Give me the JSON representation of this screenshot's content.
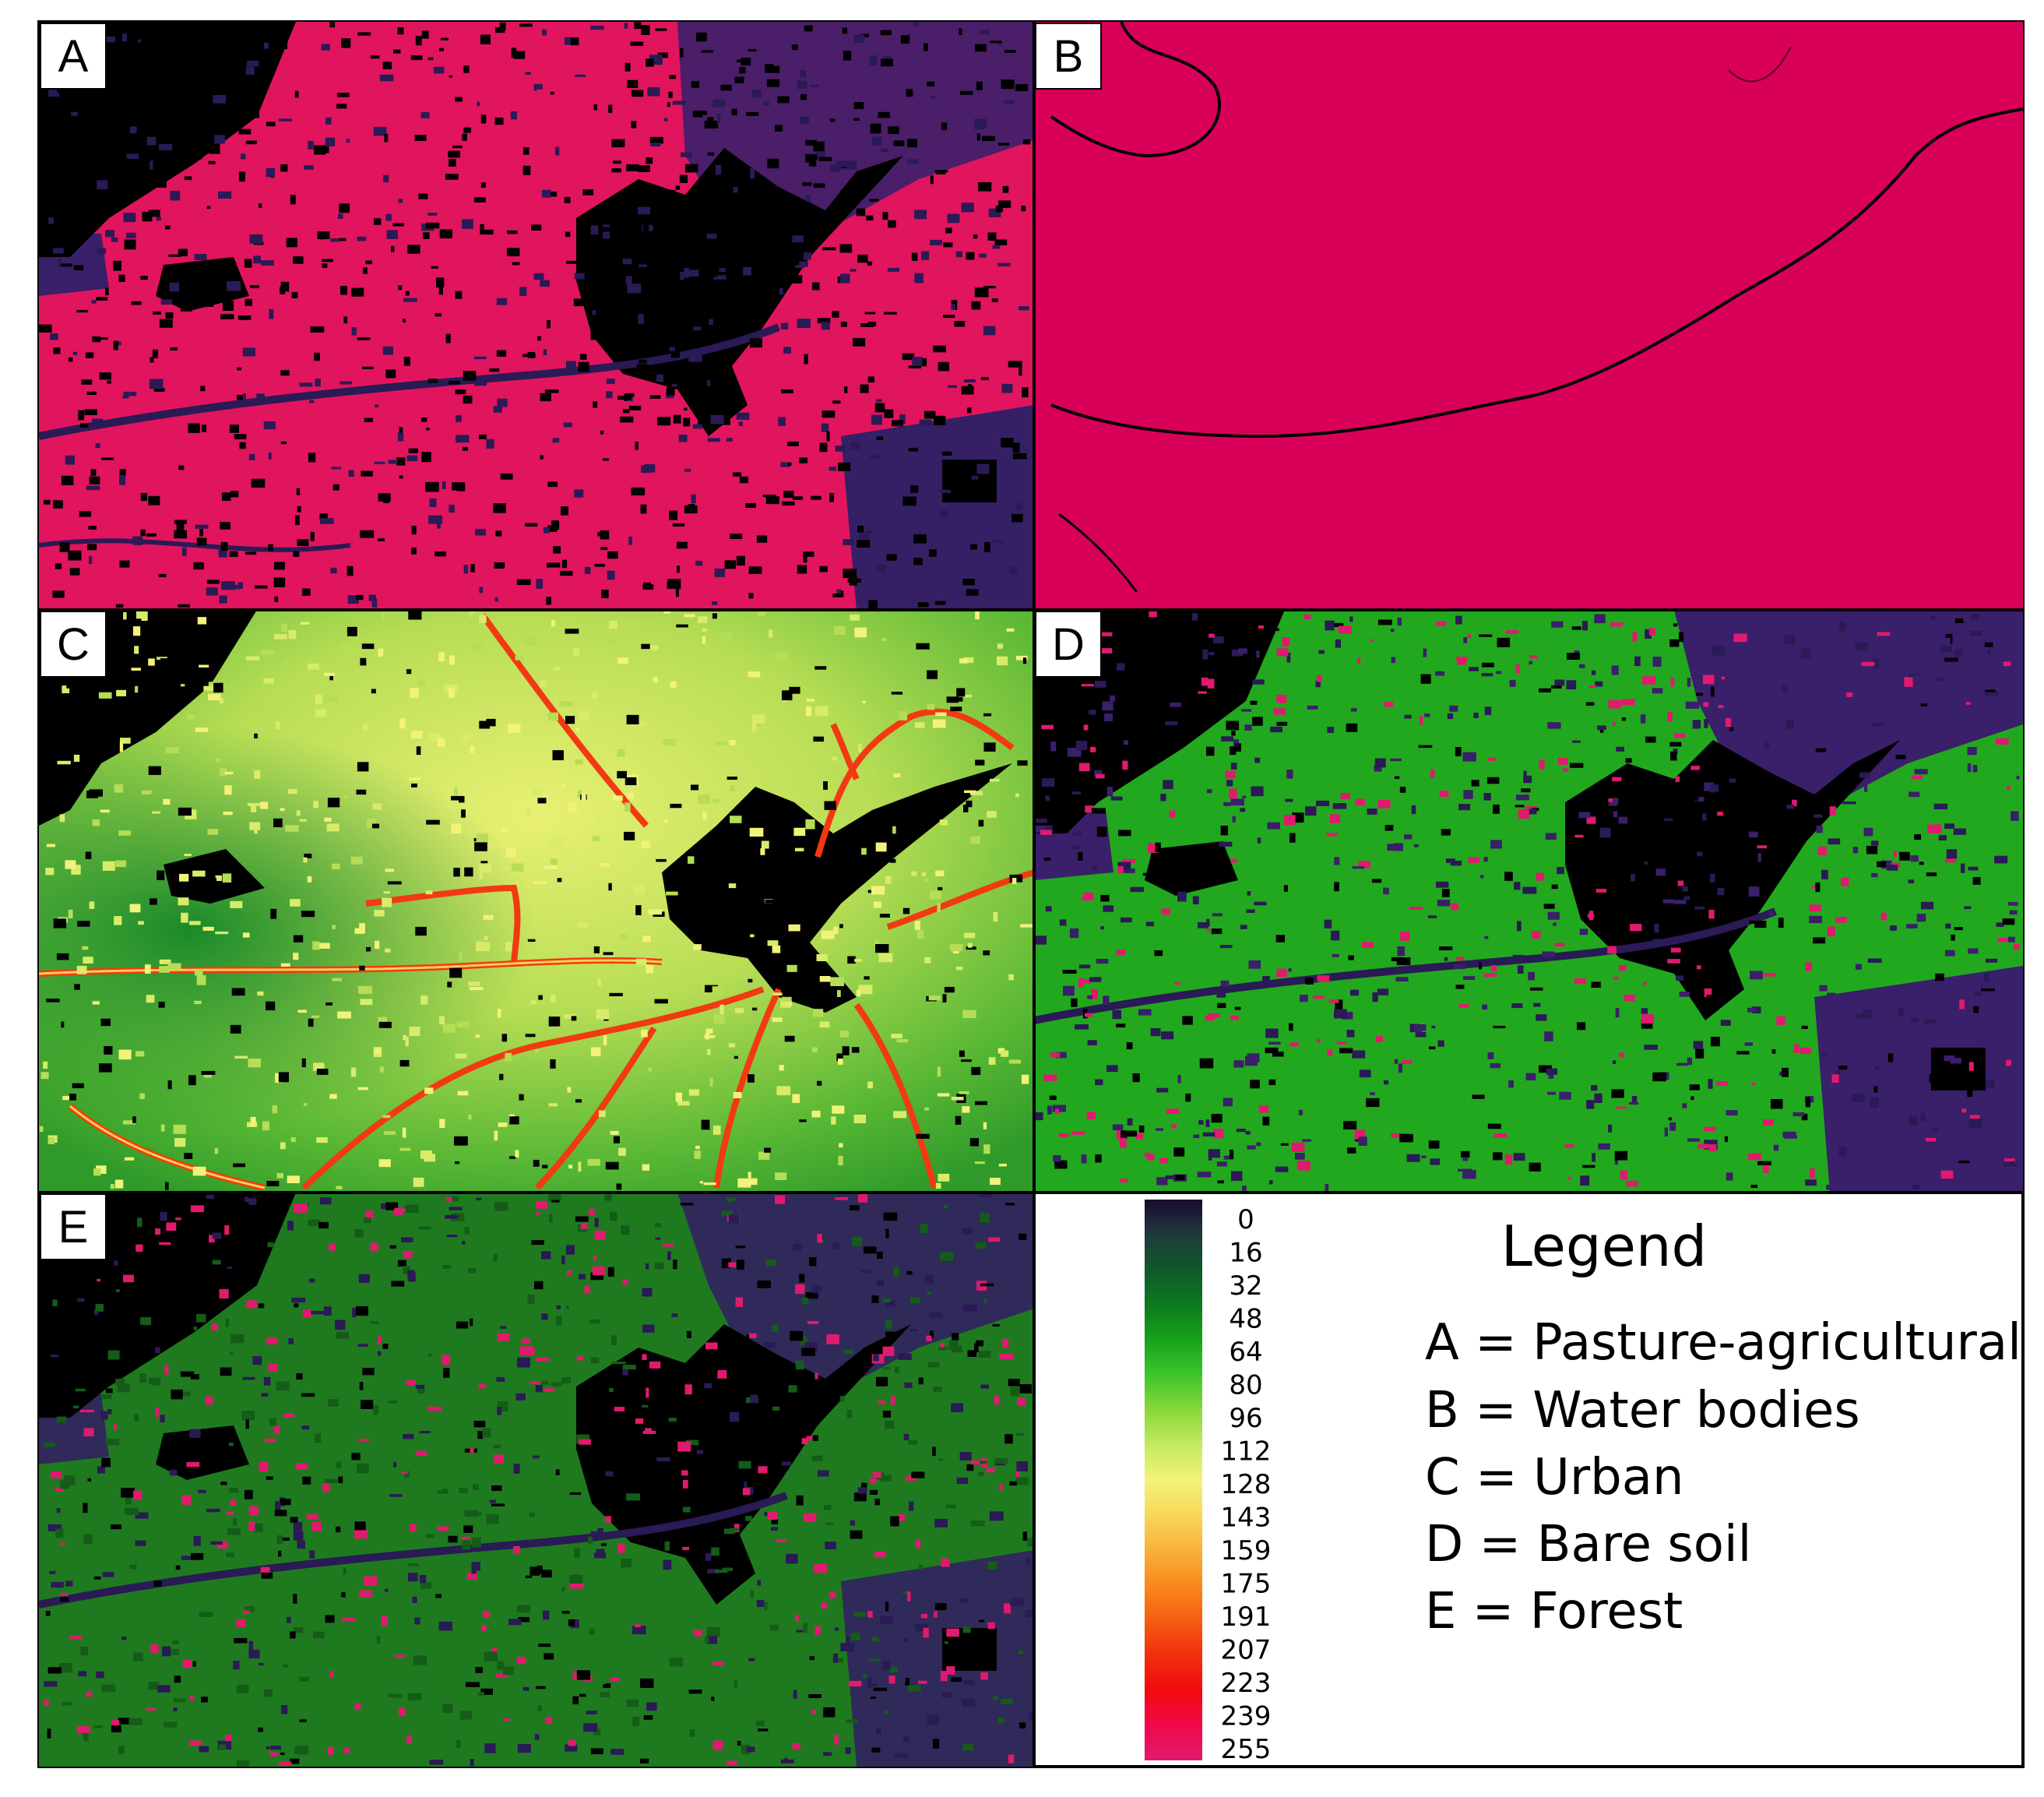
{
  "panels": [
    {
      "label": "A",
      "theme": "pasture"
    },
    {
      "label": "B",
      "theme": "water"
    },
    {
      "label": "C",
      "theme": "urban"
    },
    {
      "label": "D",
      "theme": "baresoil"
    },
    {
      "label": "E",
      "theme": "forest"
    }
  ],
  "colorbar": {
    "ticks": [
      "0",
      "16",
      "32",
      "48",
      "64",
      "80",
      "96",
      "112",
      "128",
      "143",
      "159",
      "175",
      "191",
      "207",
      "223",
      "239",
      "255"
    ],
    "gradient": [
      {
        "value": 0,
        "color": "#1a0a2e"
      },
      {
        "value": 16,
        "color": "#1f3a3d"
      },
      {
        "value": 32,
        "color": "#0f5a2a"
      },
      {
        "value": 48,
        "color": "#0d7a1e"
      },
      {
        "value": 64,
        "color": "#17a31a"
      },
      {
        "value": 80,
        "color": "#3fc62c"
      },
      {
        "value": 96,
        "color": "#8ad83a"
      },
      {
        "value": 112,
        "color": "#c6ea62"
      },
      {
        "value": 128,
        "color": "#f4f27a"
      },
      {
        "value": 143,
        "color": "#f8d85a"
      },
      {
        "value": 159,
        "color": "#f9b23a"
      },
      {
        "value": 175,
        "color": "#f98a1e"
      },
      {
        "value": 191,
        "color": "#f65e12"
      },
      {
        "value": 207,
        "color": "#f2300f"
      },
      {
        "value": 223,
        "color": "#f20a0e"
      },
      {
        "value": 239,
        "color": "#f0084a"
      },
      {
        "value": 255,
        "color": "#e01a6e"
      }
    ]
  },
  "legend": {
    "title": "Legend",
    "entries": [
      "A = Pasture-agricultural",
      "B = Water bodies",
      "C = Urban",
      "D = Bare soil",
      "E = Forest"
    ]
  },
  "colors": {
    "masked": "#000000",
    "pasture_bg": "#e0155e",
    "water_bg": "#d9005a",
    "dark_purple": "#2d1a5a",
    "forest_green": "#1f7a1f",
    "bare_green": "#22a81e",
    "urban_green": "#9fd24a",
    "urban_yellow": "#e6ef6e",
    "road_red": "#f23a12"
  }
}
